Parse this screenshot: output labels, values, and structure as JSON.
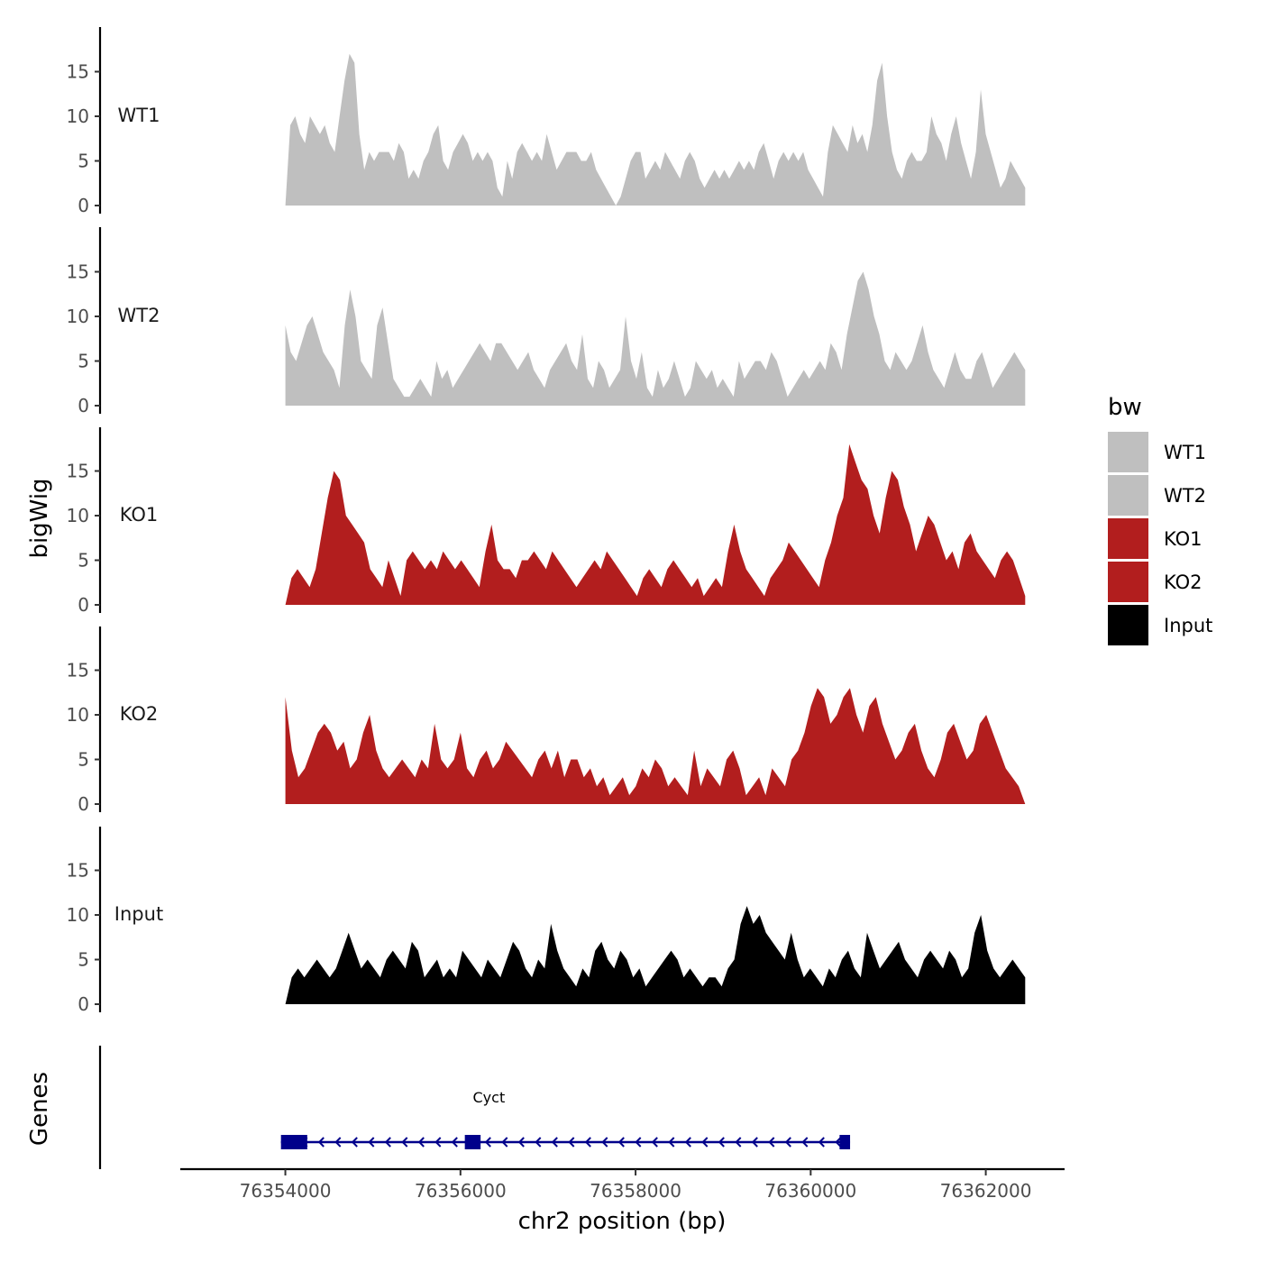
{
  "chart_data": {
    "type": "area",
    "title": "",
    "xlabel": "chr2 position (bp)",
    "ylabel": "bigWig",
    "genes_label": "Genes",
    "x_range": [
      76352800,
      76362900
    ],
    "data_x_range": [
      76354000,
      76362450
    ],
    "x_ticks": [
      76354000,
      76356000,
      76358000,
      76360000,
      76362000
    ],
    "x_tick_labels": [
      "76354000",
      "76356000",
      "76358000",
      "76360000",
      "76362000"
    ],
    "y_ticks": [
      0,
      5,
      10,
      15
    ],
    "y_tick_labels": [
      "0",
      "5",
      "10",
      "15"
    ],
    "ylim": [
      0,
      20
    ],
    "legend": {
      "title": "bw",
      "placement": "right",
      "entries": [
        {
          "label": "WT1",
          "color": "#bfbfbf"
        },
        {
          "label": "WT2",
          "color": "#bfbfbf"
        },
        {
          "label": "KO1",
          "color": "#b21e1e"
        },
        {
          "label": "KO2",
          "color": "#b21e1e"
        },
        {
          "label": "Input",
          "color": "#000000"
        }
      ]
    },
    "series": [
      {
        "name": "WT1",
        "color": "#bfbfbf",
        "values": [
          0,
          9,
          10,
          8,
          7,
          10,
          9,
          8,
          9,
          7,
          6,
          10,
          14,
          17,
          16,
          8,
          4,
          6,
          5,
          6,
          6,
          6,
          5,
          7,
          6,
          3,
          4,
          3,
          5,
          6,
          8,
          9,
          5,
          4,
          6,
          7,
          8,
          7,
          5,
          6,
          5,
          6,
          5,
          2,
          1,
          5,
          3,
          6,
          7,
          6,
          5,
          6,
          5,
          8,
          6,
          4,
          5,
          6,
          6,
          6,
          5,
          5,
          6,
          4,
          3,
          2,
          1,
          0,
          1,
          3,
          5,
          6,
          6,
          3,
          4,
          5,
          4,
          6,
          5,
          4,
          3,
          5,
          6,
          5,
          3,
          2,
          3,
          4,
          3,
          4,
          3,
          4,
          5,
          4,
          5,
          4,
          6,
          7,
          5,
          3,
          5,
          6,
          5,
          6,
          5,
          6,
          4,
          3,
          2,
          1,
          6,
          9,
          8,
          7,
          6,
          9,
          7,
          8,
          6,
          9,
          14,
          16,
          10,
          6,
          4,
          3,
          5,
          6,
          5,
          5,
          6,
          10,
          8,
          7,
          5,
          8,
          10,
          7,
          5,
          3,
          6,
          13,
          8,
          6,
          4,
          2,
          3,
          5,
          4,
          3,
          2
        ]
      },
      {
        "name": "WT2",
        "color": "#bfbfbf",
        "values": [
          9,
          6,
          5,
          7,
          9,
          10,
          8,
          6,
          5,
          4,
          2,
          9,
          13,
          10,
          5,
          4,
          3,
          9,
          11,
          7,
          3,
          2,
          1,
          1,
          2,
          3,
          2,
          1,
          5,
          3,
          4,
          2,
          3,
          4,
          5,
          6,
          7,
          6,
          5,
          7,
          7,
          6,
          5,
          4,
          5,
          6,
          4,
          3,
          2,
          4,
          5,
          6,
          7,
          5,
          4,
          8,
          3,
          2,
          5,
          4,
          2,
          3,
          4,
          10,
          5,
          3,
          6,
          2,
          1,
          4,
          2,
          3,
          5,
          3,
          1,
          2,
          5,
          4,
          3,
          4,
          2,
          3,
          2,
          1,
          5,
          3,
          4,
          5,
          5,
          4,
          6,
          5,
          3,
          1,
          2,
          3,
          4,
          3,
          4,
          5,
          4,
          7,
          6,
          4,
          8,
          11,
          14,
          15,
          13,
          10,
          8,
          5,
          4,
          6,
          5,
          4,
          5,
          7,
          9,
          6,
          4,
          3,
          2,
          4,
          6,
          4,
          3,
          3,
          5,
          6,
          4,
          2,
          3,
          4,
          5,
          6,
          5,
          4
        ]
      },
      {
        "name": "KO1",
        "color": "#b21e1e",
        "values": [
          0,
          3,
          4,
          3,
          2,
          4,
          8,
          12,
          15,
          14,
          10,
          9,
          8,
          7,
          4,
          3,
          2,
          5,
          3,
          1,
          5,
          6,
          5,
          4,
          5,
          4,
          6,
          5,
          4,
          5,
          4,
          3,
          2,
          6,
          9,
          5,
          4,
          4,
          3,
          5,
          5,
          6,
          5,
          4,
          6,
          5,
          4,
          3,
          2,
          3,
          4,
          5,
          4,
          6,
          5,
          4,
          3,
          2,
          1,
          3,
          4,
          3,
          2,
          4,
          5,
          4,
          3,
          2,
          3,
          1,
          2,
          3,
          2,
          6,
          9,
          6,
          4,
          3,
          2,
          1,
          3,
          4,
          5,
          7,
          6,
          5,
          4,
          3,
          2,
          5,
          7,
          10,
          12,
          18,
          16,
          14,
          13,
          10,
          8,
          12,
          15,
          14,
          11,
          9,
          6,
          8,
          10,
          9,
          7,
          5,
          6,
          4,
          7,
          8,
          6,
          5,
          4,
          3,
          5,
          6,
          5,
          3,
          1
        ]
      },
      {
        "name": "KO2",
        "color": "#b21e1e",
        "values": [
          12,
          6,
          3,
          4,
          6,
          8,
          9,
          8,
          6,
          7,
          4,
          5,
          8,
          10,
          6,
          4,
          3,
          4,
          5,
          4,
          3,
          5,
          4,
          9,
          5,
          4,
          5,
          8,
          4,
          3,
          5,
          6,
          4,
          5,
          7,
          6,
          5,
          4,
          3,
          5,
          6,
          4,
          6,
          3,
          5,
          5,
          3,
          4,
          2,
          3,
          1,
          2,
          3,
          1,
          2,
          4,
          3,
          5,
          4,
          2,
          3,
          2,
          1,
          6,
          2,
          4,
          3,
          2,
          5,
          6,
          4,
          1,
          2,
          3,
          1,
          4,
          3,
          2,
          5,
          6,
          8,
          11,
          13,
          12,
          9,
          10,
          12,
          13,
          10,
          8,
          11,
          12,
          9,
          7,
          5,
          6,
          8,
          9,
          6,
          4,
          3,
          5,
          8,
          9,
          7,
          5,
          6,
          9,
          10,
          8,
          6,
          4,
          3,
          2,
          0
        ]
      },
      {
        "name": "Input",
        "color": "#000000",
        "values": [
          0,
          3,
          4,
          3,
          4,
          5,
          4,
          3,
          4,
          6,
          8,
          6,
          4,
          5,
          4,
          3,
          5,
          6,
          5,
          4,
          7,
          6,
          3,
          4,
          5,
          3,
          4,
          3,
          6,
          5,
          4,
          3,
          5,
          4,
          3,
          5,
          7,
          6,
          4,
          3,
          5,
          4,
          9,
          6,
          4,
          3,
          2,
          4,
          3,
          6,
          7,
          5,
          4,
          6,
          5,
          3,
          4,
          2,
          3,
          4,
          5,
          6,
          5,
          3,
          4,
          3,
          2,
          3,
          3,
          2,
          4,
          5,
          9,
          11,
          9,
          10,
          8,
          7,
          6,
          5,
          8,
          5,
          3,
          4,
          3,
          2,
          4,
          3,
          5,
          6,
          4,
          3,
          8,
          6,
          4,
          5,
          6,
          7,
          5,
          4,
          3,
          5,
          6,
          5,
          4,
          6,
          5,
          3,
          4,
          8,
          10,
          6,
          4,
          3,
          4,
          5,
          4,
          3
        ]
      }
    ],
    "genes": [
      {
        "name": "Cyct",
        "strand": "-",
        "start": 76353950,
        "end": 76360450,
        "exons": [
          [
            76353950,
            76354250
          ],
          [
            76356050,
            76356230
          ],
          [
            76360330,
            76360450
          ]
        ],
        "color": "#00008b"
      }
    ]
  }
}
